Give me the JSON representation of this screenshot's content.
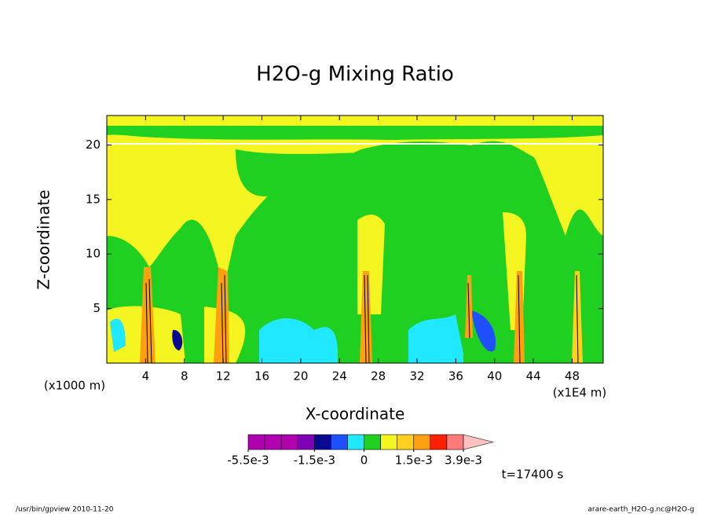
{
  "chart_data": {
    "type": "contour",
    "title": "H2O-g Mixing Ratio",
    "x_label": "X-coordinate",
    "y_label": "Z-coordinate",
    "x_unit": "(x1E4 m)",
    "y_unit": "(x1000 m)",
    "xlim": [
      0,
      51.2
    ],
    "ylim": [
      0,
      22.7
    ],
    "xticks": [
      4,
      8,
      12,
      16,
      20,
      24,
      28,
      32,
      36,
      40,
      44,
      48
    ],
    "yticks": [
      5,
      10,
      15,
      20
    ],
    "colorbar": {
      "levels": [
        -0.0055,
        -0.0045,
        -0.0035,
        -0.0025,
        -0.0015,
        -0.001,
        -0.0005,
        0,
        0.0005,
        0.001,
        0.0015,
        0.0023,
        0.0031,
        0.0039
      ],
      "colors": [
        "#b000b0",
        "#b000b0",
        "#b000b0",
        "#8000b8",
        "#0a0a90",
        "#1e50ff",
        "#20e8ff",
        "#20d020",
        "#f4f420",
        "#ffd020",
        "#ffa010",
        "#ff2000",
        "#ff7a7a"
      ],
      "extend_color": "#ffc0c0",
      "ticks": [
        {
          "value": -0.0055,
          "label": "-5.5e-3"
        },
        {
          "value": -0.0015,
          "label": "-1.5e-3"
        },
        0,
        {
          "value": 0.0015,
          "label": "1.5e-3"
        },
        {
          "value": 0.0039,
          "label": "3.9e-3"
        }
      ]
    },
    "time_label": "t=17400 s",
    "footer_left": "/usr/bin/gpview  2010-11-20",
    "footer_right": "arare-earth_H2O-g.nc@H2O-g"
  }
}
